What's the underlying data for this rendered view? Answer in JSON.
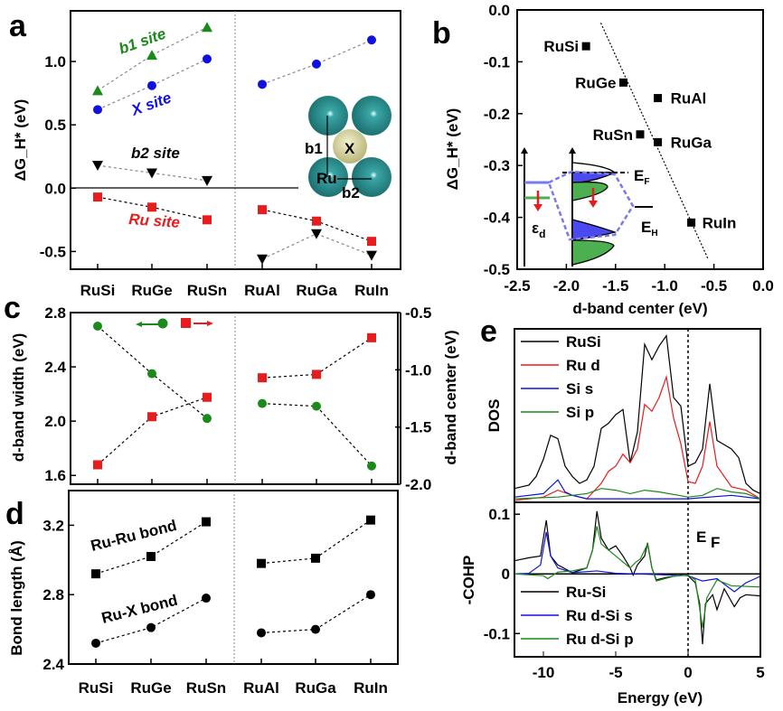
{
  "colors": {
    "red": "#e81c1c",
    "green": "#1a8a1a",
    "blue": "#1010e0",
    "black": "#000000",
    "atom_ru": "#2a8c8c",
    "atom_x": "#d8d49a",
    "inset_blue": "#4a4af0",
    "inset_green": "#4caf50",
    "inset_dash": "#7a7ae8"
  },
  "chart_data": [
    {
      "panel": "a",
      "type": "scatter",
      "categories": [
        "RuSi",
        "RuGe",
        "RuSn",
        "RuAl",
        "RuGa",
        "RuIn"
      ],
      "ylabel": "ΔG_H* (eV)",
      "ylim": [
        -0.64,
        1.4
      ],
      "yticks": [
        "1.0",
        "0.5",
        "0.0",
        "-0.5"
      ],
      "ytick_values": [
        1.0,
        0.5,
        0.0,
        -0.5
      ],
      "series": [
        {
          "name": "b1 site",
          "color": "green",
          "marker": "triangle-up",
          "values": [
            0.77,
            1.05,
            1.27,
            null,
            null,
            null
          ]
        },
        {
          "name": "X site",
          "color": "blue",
          "marker": "circle",
          "values": [
            0.62,
            0.81,
            1.02,
            0.82,
            0.98,
            1.17
          ]
        },
        {
          "name": "b2 site",
          "color": "black",
          "marker": "triangle-down",
          "values": [
            0.18,
            0.12,
            0.06,
            -0.56,
            -0.36,
            -0.53
          ]
        },
        {
          "name": "Ru site",
          "color": "red",
          "marker": "square",
          "values": [
            -0.07,
            -0.15,
            -0.25,
            -0.17,
            -0.26,
            -0.42
          ]
        }
      ],
      "inset_labels": {
        "b1": "b1",
        "x": "X",
        "ru": "Ru",
        "b2": "b2"
      }
    },
    {
      "panel": "b",
      "type": "scatter",
      "xlabel": "d-band center (eV)",
      "ylabel": "ΔG_H* (eV)",
      "xlim": [
        -2.5,
        0.0
      ],
      "ylim": [
        -0.5,
        0.0
      ],
      "xticks": [
        "-2.5",
        "-2.0",
        "-1.5",
        "-1.0",
        "-0.5",
        "0.0"
      ],
      "xtick_values": [
        -2.5,
        -2.0,
        -1.5,
        -1.0,
        -0.5,
        0.0
      ],
      "yticks": [
        "0.0",
        "-0.1",
        "-0.2",
        "-0.3",
        "-0.4",
        "-0.5"
      ],
      "ytick_values": [
        0.0,
        -0.1,
        -0.2,
        -0.3,
        -0.4,
        -0.5
      ],
      "points": [
        {
          "label": "RuSi",
          "x": -1.8,
          "y": -0.07
        },
        {
          "label": "RuGe",
          "x": -1.42,
          "y": -0.14
        },
        {
          "label": "RuAl",
          "x": -1.07,
          "y": -0.17
        },
        {
          "label": "RuSn",
          "x": -1.25,
          "y": -0.24
        },
        {
          "label": "RuGa",
          "x": -1.07,
          "y": -0.255
        },
        {
          "label": "RuIn",
          "x": -0.73,
          "y": -0.41
        }
      ],
      "trend_line": [
        {
          "x": -1.65,
          "y": -0.025
        },
        {
          "x": -0.56,
          "y": -0.48
        }
      ],
      "inset_labels": {
        "ef": "E",
        "ef_sub": "F",
        "eh": "E",
        "eh_sub": "H",
        "ed": "ε",
        "ed_sub": "d"
      }
    },
    {
      "panel": "c",
      "type": "scatter",
      "categories": [
        "RuSi",
        "RuGe",
        "RuSn",
        "RuAl",
        "RuGa",
        "RuIn"
      ],
      "ylabel": "d-band width (eV)",
      "ylim": [
        1.535,
        2.8
      ],
      "yticks": [
        "2.8",
        "2.4",
        "2.0",
        "1.6"
      ],
      "ytick_values": [
        2.8,
        2.4,
        2.0,
        1.6
      ],
      "y2label": "d-band center (eV)",
      "y2lim": [
        -2.0,
        -0.5
      ],
      "y2ticks": [
        "-0.5",
        "-1.0",
        "-1.5",
        "-2.0"
      ],
      "y2tick_values": [
        -0.5,
        -1.0,
        -1.5,
        -2.0
      ],
      "series": [
        {
          "axis": "left",
          "color": "green",
          "marker": "circle",
          "values": [
            2.7,
            2.35,
            2.02,
            2.13,
            2.11,
            1.67
          ]
        },
        {
          "axis": "right",
          "color": "red",
          "marker": "square",
          "values": [
            -1.83,
            -1.41,
            -1.24,
            -1.07,
            -1.04,
            -0.72
          ]
        }
      ]
    },
    {
      "panel": "d",
      "type": "scatter",
      "categories": [
        "RuSi",
        "RuGe",
        "RuSn",
        "RuAl",
        "RuGa",
        "RuIn"
      ],
      "ylabel": "Bond length (Å)",
      "ylim": [
        2.4,
        3.4
      ],
      "yticks": [
        "3.2",
        "2.8",
        "2.4"
      ],
      "ytick_values": [
        3.2,
        2.8,
        2.4
      ],
      "series": [
        {
          "name": "Ru-Ru bond",
          "color": "black",
          "marker": "square",
          "values": [
            2.92,
            3.02,
            3.22,
            2.98,
            3.01,
            3.23
          ]
        },
        {
          "name": "Ru-X bond",
          "color": "black",
          "marker": "circle",
          "values": [
            2.52,
            2.61,
            2.78,
            2.58,
            2.6,
            2.8
          ]
        }
      ]
    },
    {
      "panel": "e",
      "type": "line",
      "xlabel": "Energy (eV)",
      "xlim": [
        -12,
        5
      ],
      "xticks": [
        "-10",
        "-5",
        "0",
        "5"
      ],
      "xtick_values": [
        -10,
        -5,
        0,
        5
      ],
      "fermi_label": "E",
      "fermi_sub": "F",
      "dos": {
        "ylabel": "DOS",
        "ylim": [
          0,
          1
        ],
        "series": [
          {
            "name": "RuSi",
            "color": "black",
            "points": [
              [
                -12,
                0.07
              ],
              [
                -11,
                0.09
              ],
              [
                -10.5,
                0.14
              ],
              [
                -10,
                0.24
              ],
              [
                -9.5,
                0.38
              ],
              [
                -9,
                0.36
              ],
              [
                -8.5,
                0.2
              ],
              [
                -8,
                0.14
              ],
              [
                -7.5,
                0.1
              ],
              [
                -7,
                0.12
              ],
              [
                -6.5,
                0.2
              ],
              [
                -6,
                0.42
              ],
              [
                -5.5,
                0.45
              ],
              [
                -5,
                0.5
              ],
              [
                -4.5,
                0.53
              ],
              [
                -4,
                0.22
              ],
              [
                -3.5,
                0.4
              ],
              [
                -3,
                0.91
              ],
              [
                -2.5,
                0.82
              ],
              [
                -2,
                0.9
              ],
              [
                -1.5,
                0.96
              ],
              [
                -1,
                0.6
              ],
              [
                -0.5,
                0.55
              ],
              [
                0,
                0.2
              ],
              [
                0.5,
                0.22
              ],
              [
                1,
                0.3
              ],
              [
                1.5,
                0.68
              ],
              [
                2,
                0.35
              ],
              [
                3,
                0.3
              ],
              [
                3.5,
                0.25
              ],
              [
                4,
                0.1
              ],
              [
                4.5,
                0.06
              ],
              [
                5,
                0.04
              ]
            ]
          },
          {
            "name": "Ru d",
            "color": "red",
            "points": [
              [
                -12,
                0
              ],
              [
                -10,
                0.02
              ],
              [
                -9,
                0.06
              ],
              [
                -8,
                0.03
              ],
              [
                -7,
                0.01
              ],
              [
                -6,
                0.1
              ],
              [
                -5.5,
                0.17
              ],
              [
                -5,
                0.2
              ],
              [
                -4.5,
                0.27
              ],
              [
                -4,
                0.22
              ],
              [
                -3.5,
                0.3
              ],
              [
                -3,
                0.56
              ],
              [
                -2.5,
                0.52
              ],
              [
                -2,
                0.6
              ],
              [
                -1.5,
                0.72
              ],
              [
                -1,
                0.48
              ],
              [
                -0.5,
                0.33
              ],
              [
                0,
                0.11
              ],
              [
                0.5,
                0.1
              ],
              [
                1,
                0.2
              ],
              [
                1.5,
                0.46
              ],
              [
                2,
                0.2
              ],
              [
                3,
                0.08
              ],
              [
                4,
                0.06
              ],
              [
                5,
                0.01
              ]
            ]
          },
          {
            "name": "Si s",
            "color": "blue",
            "points": [
              [
                -12,
                0.02
              ],
              [
                -10,
                0.04
              ],
              [
                -9,
                0.12
              ],
              [
                -8.5,
                0.05
              ],
              [
                -8,
                0.03
              ],
              [
                -7,
                0.01
              ],
              [
                -5,
                0.01
              ],
              [
                0,
                0.01
              ],
              [
                3,
                0.03
              ],
              [
                5,
                0.01
              ]
            ]
          },
          {
            "name": "Si p",
            "color": "green",
            "points": [
              [
                -12,
                0.01
              ],
              [
                -9,
                0.02
              ],
              [
                -7,
                0.04
              ],
              [
                -6,
                0.07
              ],
              [
                -5,
                0.06
              ],
              [
                -4,
                0.04
              ],
              [
                -3,
                0.06
              ],
              [
                -2,
                0.05
              ],
              [
                0,
                0.02
              ],
              [
                1,
                0.03
              ],
              [
                2,
                0.07
              ],
              [
                3,
                0.05
              ],
              [
                4,
                0.04
              ],
              [
                5,
                0.01
              ]
            ]
          }
        ]
      },
      "cohp": {
        "ylabel": "-COHP",
        "ylim": [
          -0.139,
          0.12
        ],
        "yticks": [
          "0.1",
          "0",
          "-0.1"
        ],
        "ytick_values": [
          0.1,
          0,
          -0.1
        ],
        "series": [
          {
            "name": "Ru-Si",
            "color": "black",
            "points": [
              [
                -12,
                0.022
              ],
              [
                -11,
                0.027
              ],
              [
                -10.2,
                0.03
              ],
              [
                -9.8,
                0.09
              ],
              [
                -9.5,
                0.03
              ],
              [
                -9,
                0.015
              ],
              [
                -8,
                0.002
              ],
              [
                -7,
                0.01
              ],
              [
                -6.6,
                0.04
              ],
              [
                -6.3,
                0.105
              ],
              [
                -6,
                0.06
              ],
              [
                -5.5,
                0.04
              ],
              [
                -5,
                0.047
              ],
              [
                -4.5,
                0.03
              ],
              [
                -4,
                0.01
              ],
              [
                -3.8,
                -0.002
              ],
              [
                -3.5,
                0.015
              ],
              [
                -3,
                0.03
              ],
              [
                -2.8,
                0.052
              ],
              [
                -2.5,
                0.01
              ],
              [
                -2.2,
                -0.01
              ],
              [
                -1.5,
                -0.006
              ],
              [
                -0.5,
                -0.002
              ],
              [
                0,
                -0.003
              ],
              [
                0.5,
                -0.015
              ],
              [
                0.8,
                -0.05
              ],
              [
                1,
                -0.118
              ],
              [
                1.2,
                -0.05
              ],
              [
                1.7,
                -0.035
              ],
              [
                2,
                -0.06
              ],
              [
                2.5,
                -0.025
              ],
              [
                3.2,
                -0.055
              ],
              [
                3.6,
                -0.04
              ],
              [
                4,
                -0.035
              ],
              [
                5,
                -0.037
              ]
            ]
          },
          {
            "name": "Ru d-Si s",
            "color": "blue",
            "points": [
              [
                -12,
                0
              ],
              [
                -11,
                0.001
              ],
              [
                -10.2,
                0.015
              ],
              [
                -9.8,
                0.07
              ],
              [
                -9.5,
                0.03
              ],
              [
                -9,
                0.01
              ],
              [
                -8,
                0.002
              ],
              [
                -6.3,
                0.005
              ],
              [
                -5,
                0.001
              ],
              [
                0,
                -0.003
              ],
              [
                1,
                -0.012
              ],
              [
                2,
                -0.008
              ],
              [
                3.2,
                -0.03
              ],
              [
                4,
                -0.015
              ],
              [
                5,
                -0.004
              ]
            ]
          },
          {
            "name": "Ru d-Si p",
            "color": "green",
            "points": [
              [
                -12,
                0
              ],
              [
                -10,
                -0.003
              ],
              [
                -9.7,
                -0.008
              ],
              [
                -9,
                0.003
              ],
              [
                -8,
                0.005
              ],
              [
                -7,
                0.01
              ],
              [
                -6.6,
                0.04
              ],
              [
                -6.3,
                0.08
              ],
              [
                -6,
                0.05
              ],
              [
                -5,
                0.03
              ],
              [
                -4,
                0.01
              ],
              [
                -3.6,
                0.02
              ],
              [
                -3.3,
                0.025
              ],
              [
                -2.8,
                0.05
              ],
              [
                -2.5,
                0.01
              ],
              [
                -2.2,
                -0.012
              ],
              [
                -1,
                -0.004
              ],
              [
                0,
                -0.002
              ],
              [
                0.5,
                -0.01
              ],
              [
                1,
                -0.09
              ],
              [
                1.3,
                -0.04
              ],
              [
                2,
                -0.01
              ],
              [
                3,
                -0.02
              ],
              [
                5,
                -0.022
              ]
            ]
          }
        ]
      }
    }
  ],
  "panel_letters": {
    "a": "a",
    "b": "b",
    "c": "c",
    "d": "d",
    "e": "e"
  }
}
